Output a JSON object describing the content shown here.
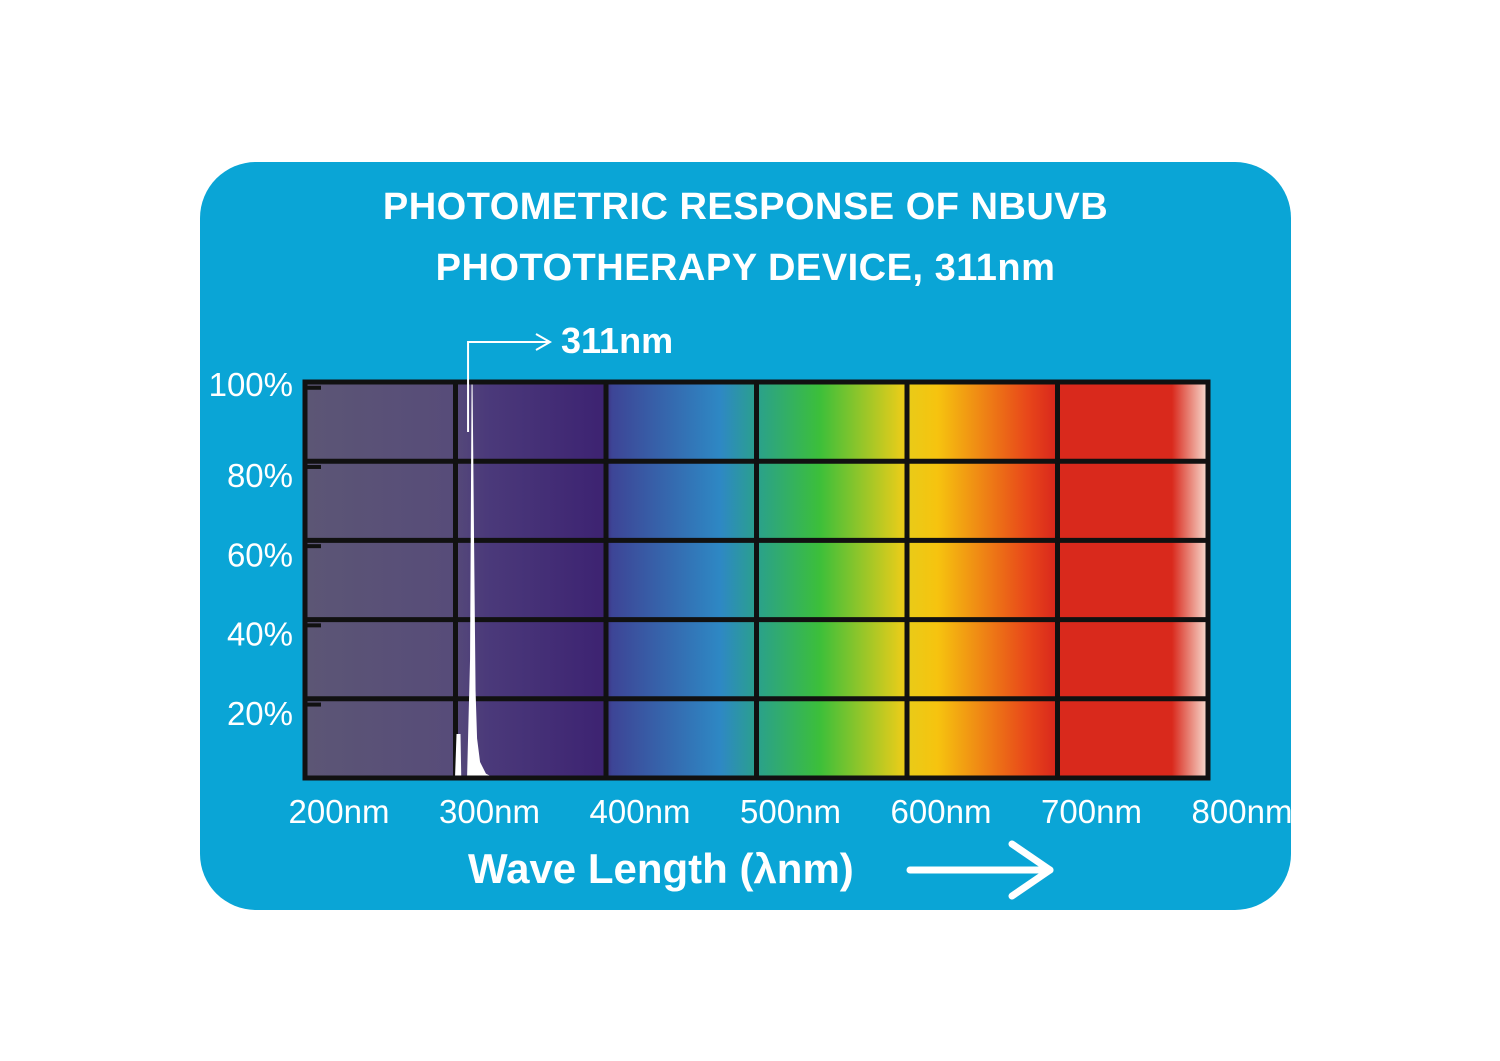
{
  "chart_data": {
    "type": "area",
    "title_line1": "PHOTOMETRIC RESPONSE OF NBUVB",
    "title_line2": "PHOTOTHERAPY DEVICE, 311nm",
    "xlabel": "Wave Length (λnm)",
    "xlim": [
      200,
      800
    ],
    "ylim": [
      0,
      100
    ],
    "x_ticks": [
      {
        "label": "200nm",
        "value": 200
      },
      {
        "label": "300nm",
        "value": 300
      },
      {
        "label": "400nm",
        "value": 400
      },
      {
        "label": "500nm",
        "value": 500
      },
      {
        "label": "600nm",
        "value": 600
      },
      {
        "label": "700nm",
        "value": 700
      },
      {
        "label": "800nm",
        "value": 800
      }
    ],
    "y_ticks": [
      {
        "label": "100%",
        "value": 100
      },
      {
        "label": "80%",
        "value": 80
      },
      {
        "label": "60%",
        "value": 60
      },
      {
        "label": "40%",
        "value": 40
      },
      {
        "label": "20%",
        "value": 20
      }
    ],
    "grid": true,
    "annotation": {
      "text": "311nm",
      "x": 311
    },
    "series": [
      {
        "x": [
          300,
          301,
          302,
          303,
          303.5,
          308,
          310,
          311,
          312,
          313,
          314,
          316,
          320,
          325
        ],
        "y": [
          0,
          11,
          11,
          11,
          0,
          0,
          30,
          100,
          60,
          22,
          10,
          4,
          1,
          0
        ]
      }
    ],
    "colors": {
      "card": "#0aa5d6",
      "plot_border": "#111111",
      "curve_fill": "#ffffff"
    }
  }
}
